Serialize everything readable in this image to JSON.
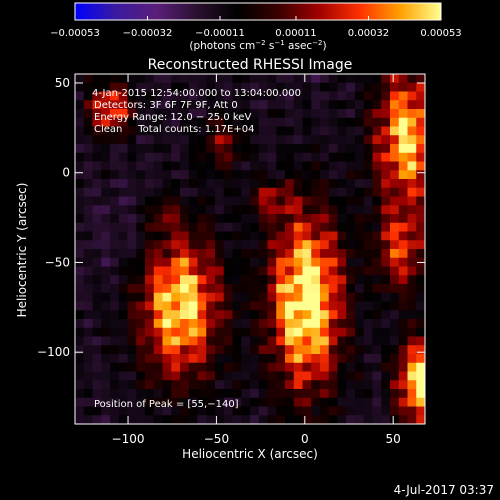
{
  "chart_data": {
    "type": "heatmap",
    "title": "Reconstructed RHESSI Image",
    "xlabel": "Heliocentric X (arcsec)",
    "ylabel": "Heliocentric Y (arcsec)",
    "xlim": [
      -130,
      68
    ],
    "ylim": [
      -140,
      55
    ],
    "x_ticks": [
      -100,
      -50,
      0,
      50
    ],
    "x_tick_labels": [
      "−100",
      "−50",
      "0",
      "50"
    ],
    "y_ticks": [
      50,
      0,
      -50,
      -100
    ],
    "y_tick_labels": [
      "50",
      "0",
      "−50",
      "−100"
    ],
    "colorbar": {
      "range": [
        -0.00053,
        0.00053
      ],
      "ticks": [
        -0.00053,
        -0.00032,
        -0.00011,
        0.00011,
        0.00032,
        0.00053
      ],
      "tick_labels": [
        "−0.00053",
        "−0.00032",
        "−0.00011",
        "0.00011",
        "0.00032",
        "0.00053"
      ],
      "unit_parts": [
        "(photons cm",
        "−2",
        " s",
        "−1",
        " asec",
        "−2",
        ")"
      ]
    },
    "annotations": [
      "4-Jan-2015 12:54:00.000 to 13:04:00.000",
      "Detectors: 3F 6F 7F 9F, Att 0",
      "Energy Range: 12.0 − 25.0 keV",
      "Clean     Total counts: 1.17E+04"
    ],
    "peak_label": "Position of Peak = [55,−140]",
    "peak": [
      55,
      -140
    ],
    "timestamp": "4-Jul-2017 03:37",
    "colors": {
      "cmap": [
        "#0000ff",
        "#3a1aa0",
        "#5a1f7a",
        "#2a1030",
        "#000000",
        "#3a0000",
        "#a00000",
        "#ff3000",
        "#ffa000",
        "#ffff90"
      ],
      "background": "#000000",
      "text": "#ffffff"
    }
  }
}
